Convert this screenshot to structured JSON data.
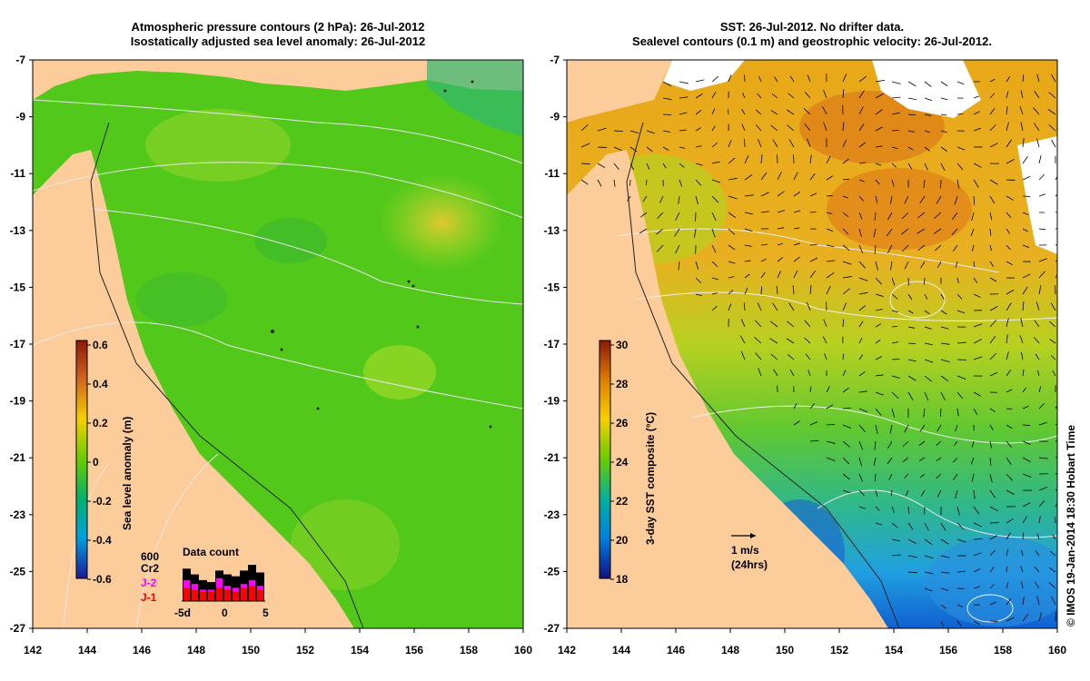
{
  "left_panel": {
    "title_line1": "Atmospheric pressure contours (2 hPa): 26-Jul-2012",
    "title_line2": "Isostatically adjusted sea level anomaly: 26-Jul-2012",
    "colorbar": {
      "label": "Sea level anomaly (m)",
      "ticks": [
        "0.6",
        "0.4",
        "0.2",
        "0",
        "-0.2",
        "-0.4",
        "-0.6"
      ],
      "colors": [
        "#8b1a0a",
        "#d2691e",
        "#f5d000",
        "#66cc00",
        "#00b070",
        "#00a0e0",
        "#1a1a9a"
      ]
    },
    "data_count": {
      "title": "Data count",
      "scale_label": "600",
      "satellites": [
        {
          "name": "Cr2",
          "color": "#000000"
        },
        {
          "name": "J-2",
          "color": "#ff00ff"
        },
        {
          "name": "J-1",
          "color": "#ff0000"
        }
      ],
      "axis_ticks": [
        "-5d",
        "0",
        "5"
      ],
      "bars": [
        {
          "total": 0.85,
          "j2": 0.55,
          "j1": 0.35
        },
        {
          "total": 0.7,
          "j2": 0.45,
          "j1": 0.3
        },
        {
          "total": 0.55,
          "j2": 0.3,
          "j1": 0.25
        },
        {
          "total": 0.5,
          "j2": 0.3,
          "j1": 0.25
        },
        {
          "total": 0.8,
          "j2": 0.6,
          "j1": 0.35
        },
        {
          "total": 0.7,
          "j2": 0.4,
          "j1": 0.3
        },
        {
          "total": 0.65,
          "j2": 0.35,
          "j1": 0.25
        },
        {
          "total": 0.8,
          "j2": 0.45,
          "j1": 0.35
        },
        {
          "total": 0.95,
          "j2": 0.55,
          "j1": 0.4
        },
        {
          "total": 0.75,
          "j2": 0.4,
          "j1": 0.3
        }
      ]
    }
  },
  "right_panel": {
    "title_line1": "SST: 26-Jul-2012. No drifter data.",
    "title_line2": "Sealevel contours (0.1 m) and geostrophic velocity: 26-Jul-2012.",
    "colorbar": {
      "label": "3-day SST composite (°C)",
      "ticks": [
        "30",
        "28",
        "26",
        "24",
        "22",
        "20",
        "18"
      ],
      "colors": [
        "#8b1a0a",
        "#e08000",
        "#f5d000",
        "#66cc00",
        "#00b0a0",
        "#0080e0",
        "#101080"
      ]
    },
    "scale_arrow": {
      "line1": "1 m/s",
      "line2": "(24hrs)"
    }
  },
  "axes": {
    "lat_ticks": [
      "-7",
      "-9",
      "-11",
      "-13",
      "-15",
      "-17",
      "-19",
      "-21",
      "-23",
      "-25",
      "-27"
    ],
    "lon_ticks": [
      "142",
      "144",
      "146",
      "148",
      "150",
      "152",
      "154",
      "156",
      "158",
      "160"
    ]
  },
  "credit": "© IMOS 19-Jan-2014 18:30 Hobart Time",
  "colors": {
    "land": "#fccc9a",
    "ocean_green": "#52c81a",
    "ocean_yellow": "#d8e020",
    "sst_orange": "#f0a020",
    "sst_blue": "#20a0e0"
  }
}
